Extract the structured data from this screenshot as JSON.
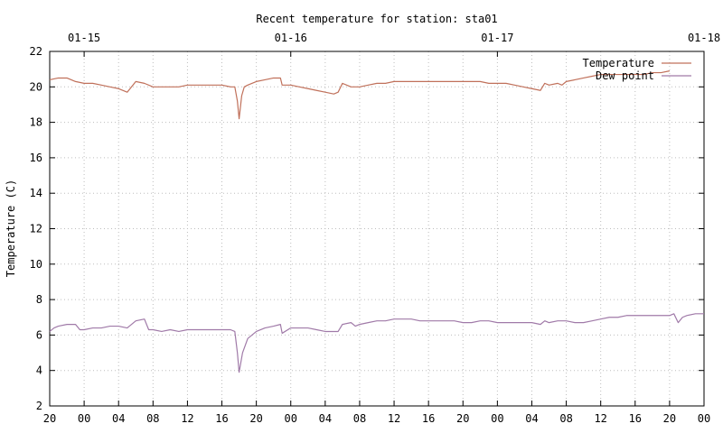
{
  "chart_data": {
    "type": "line",
    "title": "Recent temperature for station: sta01",
    "ylabel": "Temperature (C)",
    "xlabel": "",
    "ylim": [
      2,
      22
    ],
    "yticks": [
      2,
      4,
      6,
      8,
      10,
      12,
      14,
      16,
      18,
      20,
      22
    ],
    "xlim_hours": [
      0,
      76
    ],
    "x_unit": "hours since 01-14 20:00",
    "xticks": [
      {
        "h": 0,
        "label": "20"
      },
      {
        "h": 4,
        "label": "00"
      },
      {
        "h": 8,
        "label": "04"
      },
      {
        "h": 12,
        "label": "08"
      },
      {
        "h": 16,
        "label": "12"
      },
      {
        "h": 20,
        "label": "16"
      },
      {
        "h": 24,
        "label": "20"
      },
      {
        "h": 28,
        "label": "00"
      },
      {
        "h": 32,
        "label": "04"
      },
      {
        "h": 36,
        "label": "08"
      },
      {
        "h": 40,
        "label": "12"
      },
      {
        "h": 44,
        "label": "16"
      },
      {
        "h": 48,
        "label": "20"
      },
      {
        "h": 52,
        "label": "00"
      },
      {
        "h": 56,
        "label": "04"
      },
      {
        "h": 60,
        "label": "08"
      },
      {
        "h": 64,
        "label": "12"
      },
      {
        "h": 68,
        "label": "16"
      },
      {
        "h": 72,
        "label": "20"
      },
      {
        "h": 76,
        "label": "00"
      }
    ],
    "x2ticks": [
      {
        "h": 4,
        "label": "01-15"
      },
      {
        "h": 28,
        "label": "01-16"
      },
      {
        "h": 52,
        "label": "01-17"
      },
      {
        "h": 76,
        "label": "01-18"
      }
    ],
    "grid": true,
    "legend": "top-right",
    "series": [
      {
        "name": "Temperature",
        "color": "#c0705a",
        "points": [
          [
            0,
            20.4
          ],
          [
            1,
            20.5
          ],
          [
            2,
            20.5
          ],
          [
            3,
            20.3
          ],
          [
            4,
            20.2
          ],
          [
            5,
            20.2
          ],
          [
            6,
            20.1
          ],
          [
            7,
            20.0
          ],
          [
            8,
            19.9
          ],
          [
            9,
            19.7
          ],
          [
            10,
            20.3
          ],
          [
            11,
            20.2
          ],
          [
            12,
            20.0
          ],
          [
            13,
            20.0
          ],
          [
            14,
            20.0
          ],
          [
            15,
            20.0
          ],
          [
            16,
            20.1
          ],
          [
            17,
            20.1
          ],
          [
            18,
            20.1
          ],
          [
            19,
            20.1
          ],
          [
            20,
            20.1
          ],
          [
            21,
            20.0
          ],
          [
            21.5,
            20.0
          ],
          [
            21.8,
            19.2
          ],
          [
            22,
            18.2
          ],
          [
            22.3,
            19.5
          ],
          [
            22.6,
            20.0
          ],
          [
            23,
            20.1
          ],
          [
            24,
            20.3
          ],
          [
            25,
            20.4
          ],
          [
            26,
            20.5
          ],
          [
            26.8,
            20.5
          ],
          [
            27,
            20.1
          ],
          [
            28,
            20.1
          ],
          [
            29,
            20.0
          ],
          [
            30,
            19.9
          ],
          [
            31,
            19.8
          ],
          [
            32,
            19.7
          ],
          [
            33,
            19.6
          ],
          [
            33.5,
            19.7
          ],
          [
            34,
            20.2
          ],
          [
            35,
            20.0
          ],
          [
            36,
            20.0
          ],
          [
            37,
            20.1
          ],
          [
            38,
            20.2
          ],
          [
            39,
            20.2
          ],
          [
            40,
            20.3
          ],
          [
            41,
            20.3
          ],
          [
            42,
            20.3
          ],
          [
            43,
            20.3
          ],
          [
            44,
            20.3
          ],
          [
            45,
            20.3
          ],
          [
            46,
            20.3
          ],
          [
            47,
            20.3
          ],
          [
            48,
            20.3
          ],
          [
            49,
            20.3
          ],
          [
            50,
            20.3
          ],
          [
            51,
            20.2
          ],
          [
            52,
            20.2
          ],
          [
            53,
            20.2
          ],
          [
            54,
            20.1
          ],
          [
            55,
            20.0
          ],
          [
            56,
            19.9
          ],
          [
            57,
            19.8
          ],
          [
            57.5,
            20.2
          ],
          [
            58,
            20.1
          ],
          [
            59,
            20.2
          ],
          [
            59.5,
            20.1
          ],
          [
            60,
            20.3
          ],
          [
            61,
            20.4
          ],
          [
            62,
            20.5
          ],
          [
            63,
            20.6
          ],
          [
            64,
            20.7
          ],
          [
            65,
            20.7
          ],
          [
            66,
            20.7
          ],
          [
            67,
            20.7
          ],
          [
            68,
            20.7
          ],
          [
            69,
            20.7
          ],
          [
            70,
            20.8
          ],
          [
            71,
            20.8
          ],
          [
            72,
            20.9
          ]
        ]
      },
      {
        "name": "Dew point",
        "color": "#a07aa8",
        "points": [
          [
            0,
            6.2
          ],
          [
            0.5,
            6.4
          ],
          [
            1,
            6.5
          ],
          [
            2,
            6.6
          ],
          [
            3,
            6.6
          ],
          [
            3.5,
            6.3
          ],
          [
            4,
            6.3
          ],
          [
            5,
            6.4
          ],
          [
            6,
            6.4
          ],
          [
            7,
            6.5
          ],
          [
            8,
            6.5
          ],
          [
            9,
            6.4
          ],
          [
            10,
            6.8
          ],
          [
            11,
            6.9
          ],
          [
            11.5,
            6.3
          ],
          [
            12,
            6.3
          ],
          [
            13,
            6.2
          ],
          [
            14,
            6.3
          ],
          [
            15,
            6.2
          ],
          [
            16,
            6.3
          ],
          [
            17,
            6.3
          ],
          [
            18,
            6.3
          ],
          [
            19,
            6.3
          ],
          [
            20,
            6.3
          ],
          [
            21,
            6.3
          ],
          [
            21.5,
            6.2
          ],
          [
            21.8,
            5.0
          ],
          [
            22,
            3.9
          ],
          [
            22.4,
            5.0
          ],
          [
            23,
            5.8
          ],
          [
            24,
            6.2
          ],
          [
            25,
            6.4
          ],
          [
            26,
            6.5
          ],
          [
            26.8,
            6.6
          ],
          [
            27,
            6.1
          ],
          [
            28,
            6.4
          ],
          [
            29,
            6.4
          ],
          [
            30,
            6.4
          ],
          [
            31,
            6.3
          ],
          [
            32,
            6.2
          ],
          [
            33,
            6.2
          ],
          [
            33.5,
            6.2
          ],
          [
            34,
            6.6
          ],
          [
            35,
            6.7
          ],
          [
            35.5,
            6.5
          ],
          [
            36,
            6.6
          ],
          [
            37,
            6.7
          ],
          [
            38,
            6.8
          ],
          [
            39,
            6.8
          ],
          [
            40,
            6.9
          ],
          [
            41,
            6.9
          ],
          [
            42,
            6.9
          ],
          [
            43,
            6.8
          ],
          [
            44,
            6.8
          ],
          [
            45,
            6.8
          ],
          [
            46,
            6.8
          ],
          [
            47,
            6.8
          ],
          [
            48,
            6.7
          ],
          [
            49,
            6.7
          ],
          [
            50,
            6.8
          ],
          [
            51,
            6.8
          ],
          [
            52,
            6.7
          ],
          [
            53,
            6.7
          ],
          [
            54,
            6.7
          ],
          [
            55,
            6.7
          ],
          [
            56,
            6.7
          ],
          [
            57,
            6.6
          ],
          [
            57.5,
            6.8
          ],
          [
            58,
            6.7
          ],
          [
            59,
            6.8
          ],
          [
            60,
            6.8
          ],
          [
            61,
            6.7
          ],
          [
            62,
            6.7
          ],
          [
            63,
            6.8
          ],
          [
            64,
            6.9
          ],
          [
            65,
            7.0
          ],
          [
            66,
            7.0
          ],
          [
            67,
            7.1
          ],
          [
            68,
            7.1
          ],
          [
            69,
            7.1
          ],
          [
            70,
            7.1
          ],
          [
            71,
            7.1
          ],
          [
            72,
            7.1
          ],
          [
            72.5,
            7.2
          ],
          [
            73,
            6.7
          ],
          [
            73.5,
            7.0
          ],
          [
            74,
            7.1
          ],
          [
            75,
            7.2
          ],
          [
            76,
            7.2
          ]
        ]
      }
    ]
  }
}
